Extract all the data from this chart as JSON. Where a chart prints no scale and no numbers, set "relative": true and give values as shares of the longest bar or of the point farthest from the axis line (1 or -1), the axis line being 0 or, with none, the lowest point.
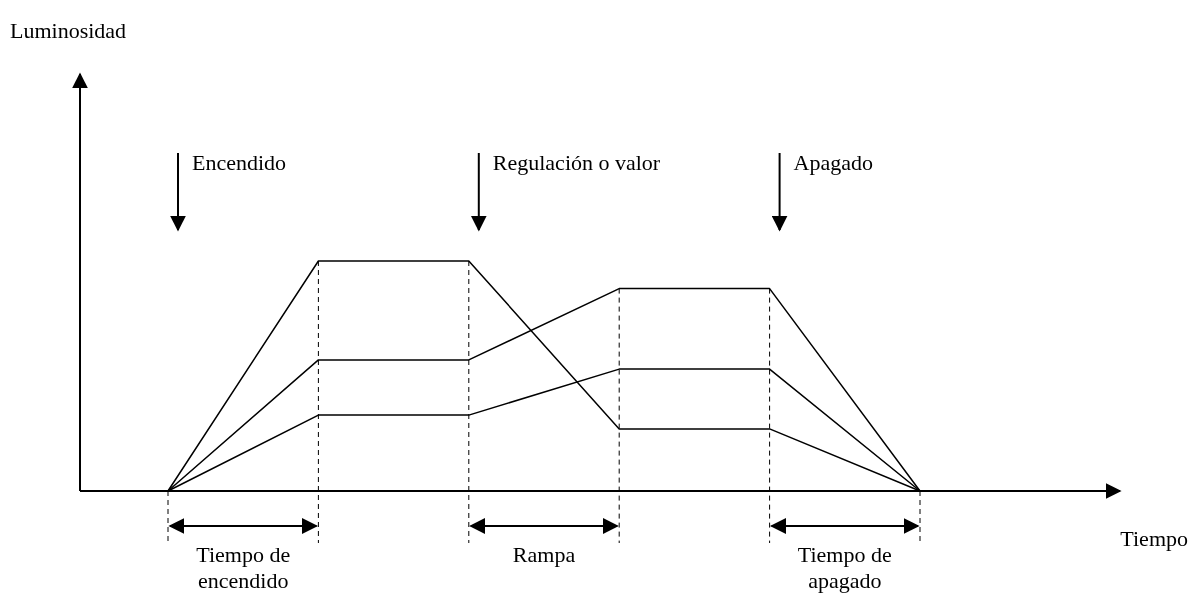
{
  "chart_data": {
    "type": "line",
    "relative": true,
    "xlabel": "Tiempo",
    "categories": [
      null,
      null,
      null,
      null,
      null,
      null
    ],
    "series": [
      {
        "color": "#000000",
        "values": [
          0,
          1,
          1,
          0.27,
          0.27,
          0
        ]
      },
      {
        "color": "#000000",
        "values": [
          0,
          0.57,
          0.57,
          0.88,
          0.88,
          0
        ]
      },
      {
        "color": "#000000",
        "values": [
          0,
          0.33,
          0.33,
          0.53,
          0.53,
          0
        ]
      }
    ],
    "marker": "none",
    "line_style": "solid",
    "grid": "x",
    "annotations": [
      "Encendido",
      "Regulación o valor",
      "Apagado",
      "Tiempo de encendido",
      "Rampa",
      "Tiempo de apagado",
      "Luminosidad"
    ]
  }
}
